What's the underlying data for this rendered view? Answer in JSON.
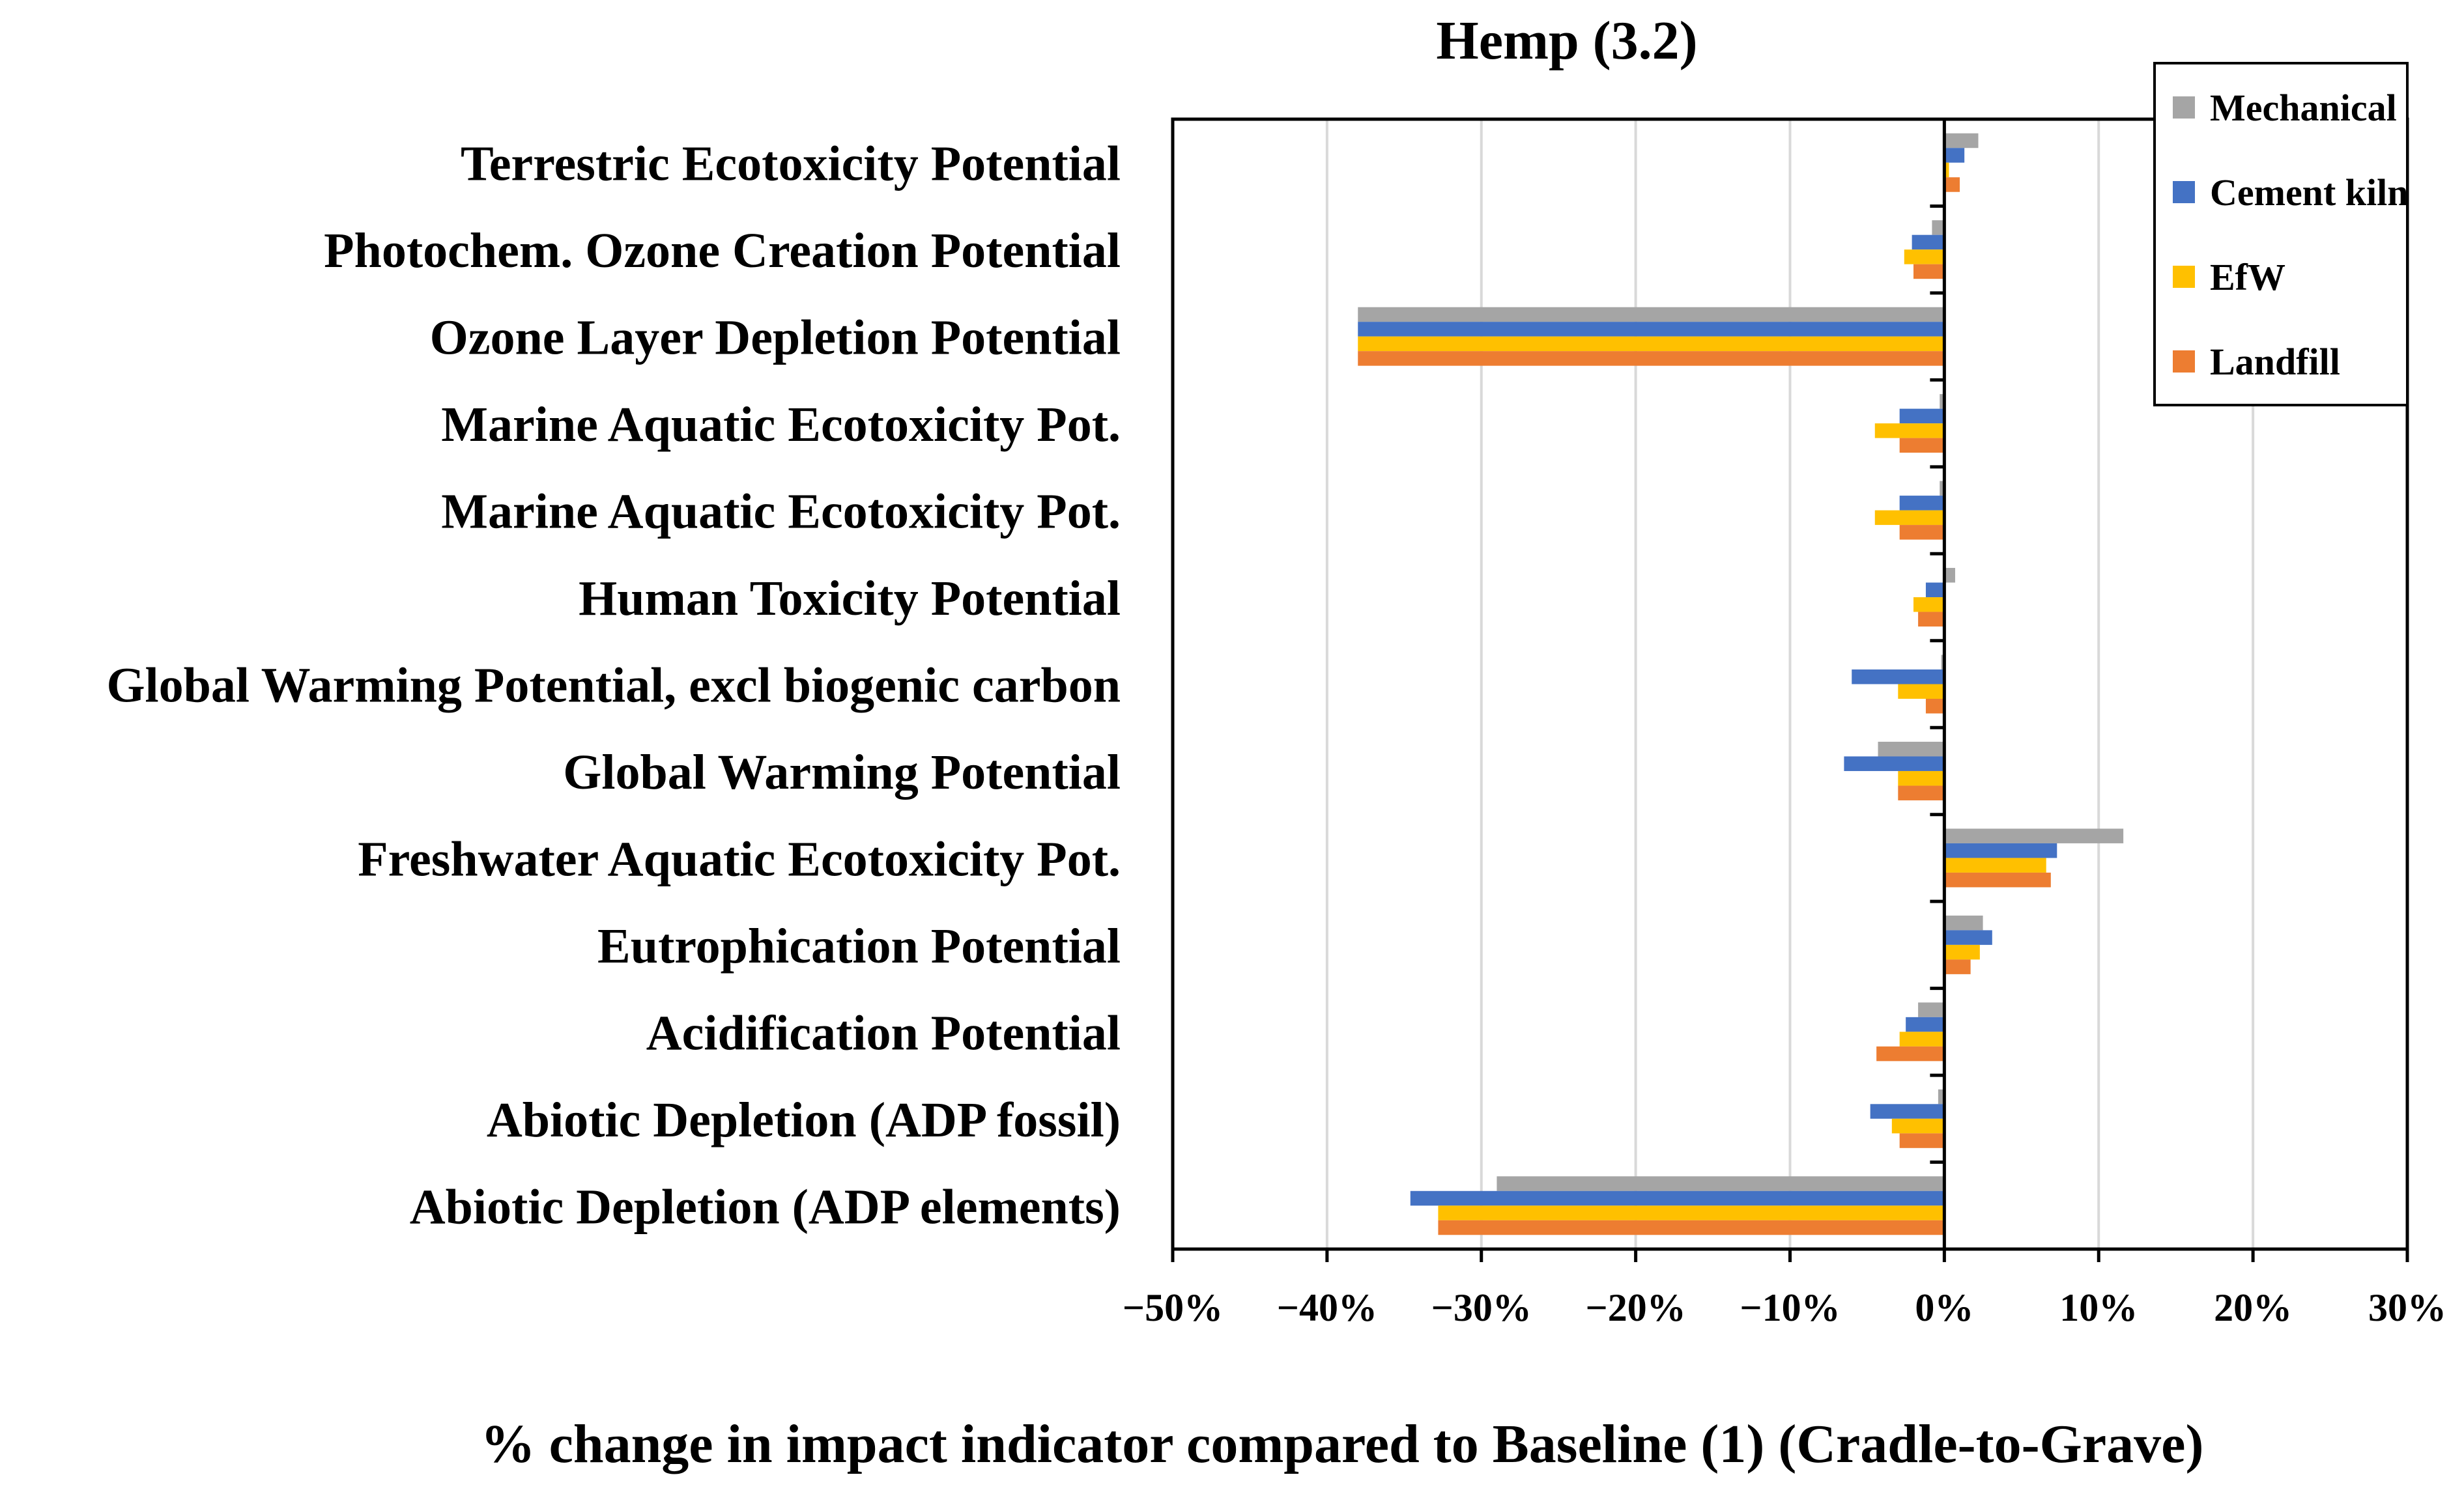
{
  "chart_data": {
    "type": "bar",
    "orientation": "horizontal",
    "title": "Hemp (3.2)",
    "xlabel": "% change in impact indicator compared to Baseline (1) (Cradle-to-Grave)",
    "ylabel": "",
    "xlim": [
      -50,
      30
    ],
    "x_ticks": [
      -50,
      -40,
      -30,
      -20,
      -10,
      0,
      10,
      20,
      30
    ],
    "x_tick_labels": [
      "−50%",
      "−40%",
      "−30%",
      "−20%",
      "−10%",
      "0%",
      "10%",
      "20%",
      "30%"
    ],
    "grid": "vertical",
    "legend_position": "top-right",
    "categories": [
      "Terrestric Ecotoxicity Potential",
      "Photochem. Ozone Creation Potential",
      "Ozone Layer Depletion Potential",
      "Marine Aquatic Ecotoxicity Pot.",
      "Marine Aquatic Ecotoxicity Pot.",
      "Human Toxicity Potential",
      "Global Warming Potential, excl biogenic carbon",
      "Global Warming Potential",
      "Freshwater Aquatic Ecotoxicity Pot.",
      "Eutrophication Potential",
      "Acidification Potential",
      "Abiotic Depletion (ADP fossil)",
      "Abiotic Depletion (ADP elements)"
    ],
    "series": [
      {
        "name": "Mechanical",
        "color": "#A5A5A5",
        "values": [
          2.2,
          -0.8,
          -38,
          -0.3,
          -0.3,
          0.7,
          -0.2,
          -4.3,
          11.6,
          2.5,
          -1.7,
          -0.4,
          -29
        ]
      },
      {
        "name": "Cement kiln",
        "color": "#4472C4",
        "values": [
          1.3,
          -2.1,
          -38,
          -2.9,
          -2.9,
          -1.2,
          -6,
          -6.5,
          7.3,
          3.1,
          -2.5,
          -4.8,
          -34.6
        ]
      },
      {
        "name": "EfW",
        "color": "#FFC000",
        "values": [
          0.3,
          -2.6,
          -38,
          -4.5,
          -4.5,
          -2,
          -3,
          -3,
          6.6,
          2.3,
          -2.9,
          -3.4,
          -32.8
        ]
      },
      {
        "name": "Landfill",
        "color": "#ED7D31",
        "values": [
          1,
          -2,
          -38,
          -2.9,
          -2.9,
          -1.7,
          -1.2,
          -3,
          6.9,
          1.7,
          -4.4,
          -2.9,
          -32.8
        ]
      }
    ]
  }
}
